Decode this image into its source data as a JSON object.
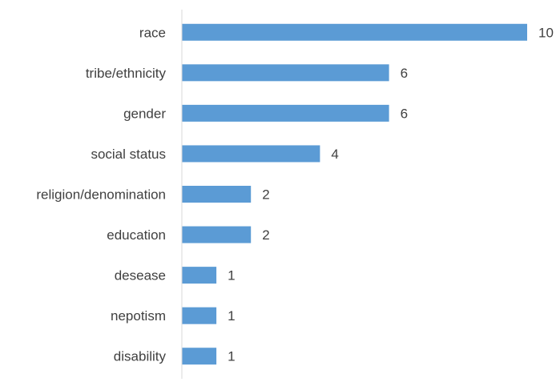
{
  "chart_data": {
    "type": "bar",
    "orientation": "horizontal",
    "categories": [
      "race",
      "tribe/ethnicity",
      "gender",
      "social status",
      "religion/denomination",
      "education",
      "desease",
      "nepotism",
      "disability"
    ],
    "values": [
      10,
      6,
      6,
      4,
      2,
      2,
      1,
      1,
      1
    ],
    "title": "",
    "xlabel": "",
    "ylabel": "",
    "xlim": [
      0,
      10
    ],
    "grid": false,
    "legend": "none",
    "data_labels": true,
    "bar_color": "#5b9bd5",
    "axis_color": "#d9d9d9",
    "text_color": "#404040"
  }
}
